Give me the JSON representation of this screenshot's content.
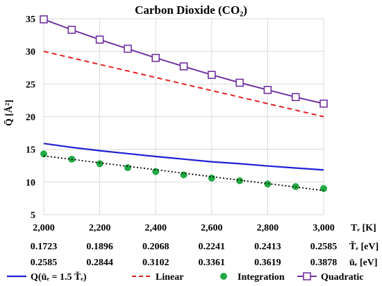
{
  "chart_data": {
    "type": "line",
    "title": "Carbon Dioxide (CO₂)",
    "ylabel": "Q̄ [Å²]",
    "xlabel": "Tₑ [K]",
    "ylim": [
      5,
      35
    ],
    "xlim": [
      2000,
      3000
    ],
    "yticks": [
      "5",
      "10",
      "15",
      "20",
      "25",
      "30",
      "35"
    ],
    "xticks": [
      "2,000",
      "2,200",
      "2,400",
      "2,600",
      "2,800",
      "3,000"
    ],
    "secondary_axes": [
      {
        "label": "Ťₑ [eV]",
        "values": [
          "0.1723",
          "0.1896",
          "0.2068",
          "0.2241",
          "0.2413",
          "0.2585"
        ]
      },
      {
        "label": "ūₑ [eV]",
        "values": [
          "0.2585",
          "0.2844",
          "0.3102",
          "0.3361",
          "0.3619",
          "0.3878"
        ]
      }
    ],
    "grid": true,
    "legend_position": "bottom",
    "series": [
      {
        "name": "Q(ūₑ = 1.5 Ťₑ)",
        "style": "solid",
        "color": "#1f1fd6",
        "x": [
          2000,
          2100,
          2200,
          2300,
          2400,
          2500,
          2600,
          2700,
          2800,
          2900,
          3000
        ],
        "y": [
          15.9,
          15.3,
          14.8,
          14.35,
          13.9,
          13.5,
          13.1,
          12.8,
          12.45,
          12.15,
          11.85
        ]
      },
      {
        "name": "Linear",
        "style": "dashed",
        "color": "#e02020",
        "x": [
          2000,
          3000
        ],
        "y": [
          30.0,
          20.0
        ]
      },
      {
        "name": "Integration",
        "style": "markers",
        "color": "#22aa44",
        "x": [
          2000,
          2100,
          2200,
          2300,
          2400,
          2500,
          2600,
          2700,
          2800,
          2900,
          3000
        ],
        "y": [
          14.3,
          13.5,
          12.8,
          12.2,
          11.6,
          11.1,
          10.6,
          10.2,
          9.7,
          9.3,
          9.0
        ]
      },
      {
        "name": "",
        "style": "dotted-trend",
        "color": "#000000",
        "x": [
          2000,
          3000
        ],
        "y": [
          14.0,
          8.7
        ]
      },
      {
        "name": "Quadratic",
        "style": "line-square",
        "color": "#7030a0",
        "x": [
          2000,
          2100,
          2200,
          2300,
          2400,
          2500,
          2600,
          2700,
          2800,
          2900,
          3000
        ],
        "y": [
          34.9,
          33.3,
          31.8,
          30.4,
          29.0,
          27.7,
          26.4,
          25.2,
          24.1,
          23.0,
          22.0
        ]
      }
    ]
  }
}
